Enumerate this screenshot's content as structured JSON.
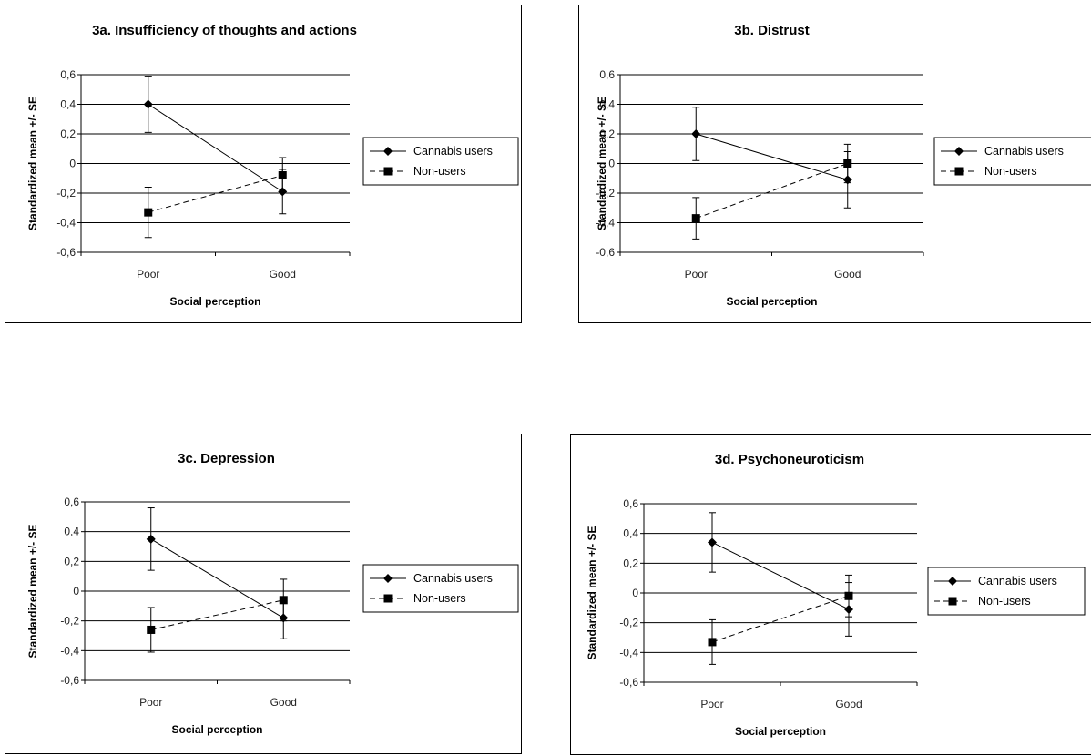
{
  "chart_data": [
    {
      "type": "line",
      "title": "3a. Insufficiency of thoughts and actions",
      "xlabel": "Social perception",
      "ylabel": "Standardized mean +/- SE",
      "categories": [
        "Poor",
        "Good"
      ],
      "ylim": [
        -0.6,
        0.6
      ],
      "yticks": [
        "0,6",
        "0,4",
        "0,2",
        "0",
        "-0,2",
        "-0,4",
        "-0,6"
      ],
      "grid": true,
      "legend_position": "right",
      "series": [
        {
          "name": "Cannabis users",
          "marker": "diamond",
          "line": "solid",
          "values": [
            0.4,
            -0.19
          ],
          "se": [
            0.19,
            0.15
          ]
        },
        {
          "name": "Non-users",
          "marker": "square",
          "line": "dashed",
          "values": [
            -0.33,
            -0.08
          ],
          "se": [
            0.17,
            0.12
          ]
        }
      ]
    },
    {
      "type": "line",
      "title": "3b. Distrust",
      "xlabel": "Social perception",
      "ylabel": "Standardized mean +/- SE",
      "categories": [
        "Poor",
        "Good"
      ],
      "ylim": [
        -0.6,
        0.6
      ],
      "yticks": [
        "0,6",
        "0,4",
        "0,2",
        "0",
        "-0,2",
        "-0,4",
        "-0,6"
      ],
      "grid": true,
      "legend_position": "right",
      "series": [
        {
          "name": "Cannabis users",
          "marker": "diamond",
          "line": "solid",
          "values": [
            0.2,
            -0.11
          ],
          "se": [
            0.18,
            0.19
          ]
        },
        {
          "name": "Non-users",
          "marker": "square",
          "line": "dashed",
          "values": [
            -0.37,
            0.0
          ],
          "se": [
            0.14,
            0.13
          ]
        }
      ]
    },
    {
      "type": "line",
      "title": "3c. Depression",
      "xlabel": "Social perception",
      "ylabel": "Standardized mean +/- SE",
      "categories": [
        "Poor",
        "Good"
      ],
      "ylim": [
        -0.6,
        0.6
      ],
      "yticks": [
        "0,6",
        "0,4",
        "0,2",
        "0",
        "-0,2",
        "-0,4",
        "-0,6"
      ],
      "grid": true,
      "legend_position": "right",
      "series": [
        {
          "name": "Cannabis users",
          "marker": "diamond",
          "line": "solid",
          "values": [
            0.35,
            -0.18
          ],
          "se": [
            0.21,
            0.14
          ]
        },
        {
          "name": "Non-users",
          "marker": "square",
          "line": "dashed",
          "values": [
            -0.26,
            -0.06
          ],
          "se": [
            0.15,
            0.14
          ]
        }
      ]
    },
    {
      "type": "line",
      "title": "3d. Psychoneuroticism",
      "xlabel": "Social perception",
      "ylabel": "Standardized mean +/- SE",
      "categories": [
        "Poor",
        "Good"
      ],
      "ylim": [
        -0.6,
        0.6
      ],
      "yticks": [
        "0,6",
        "0,4",
        "0,2",
        "0",
        "-0,2",
        "-0,4",
        "-0,6"
      ],
      "grid": true,
      "legend_position": "right",
      "series": [
        {
          "name": "Cannabis users",
          "marker": "diamond",
          "line": "solid",
          "values": [
            0.34,
            -0.11
          ],
          "se": [
            0.2,
            0.18
          ]
        },
        {
          "name": "Non-users",
          "marker": "square",
          "line": "dashed",
          "values": [
            -0.33,
            -0.02
          ],
          "se": [
            0.15,
            0.14
          ]
        }
      ]
    }
  ]
}
